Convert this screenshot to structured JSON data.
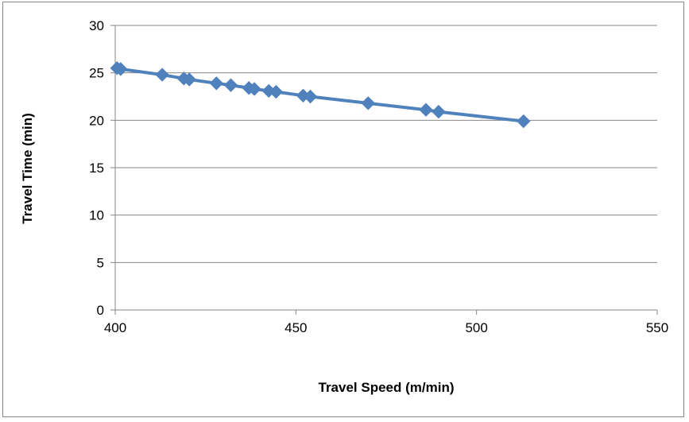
{
  "chart_data": {
    "type": "line",
    "title": "",
    "xlabel": "Travel Speed (m/min)",
    "ylabel": "Travel Time (min)",
    "xlim": [
      400,
      550
    ],
    "ylim": [
      0,
      30
    ],
    "x_ticks": [
      "400",
      "450",
      "500",
      "550"
    ],
    "y_ticks": [
      "0",
      "5",
      "10",
      "15",
      "20",
      "25",
      "30"
    ],
    "grid": "horizontal",
    "legend": "none",
    "marker": "diamond",
    "color": "#4f81bd",
    "series": [
      {
        "points": [
          [
            400.5,
            25.5
          ],
          [
            401.5,
            25.4
          ],
          [
            413,
            24.8
          ],
          [
            419,
            24.4
          ],
          [
            420.5,
            24.3
          ],
          [
            428,
            23.9
          ],
          [
            432,
            23.7
          ],
          [
            437,
            23.4
          ],
          [
            438.5,
            23.3
          ],
          [
            442.5,
            23.1
          ],
          [
            444.5,
            23.0
          ],
          [
            452,
            22.6
          ],
          [
            454,
            22.5
          ],
          [
            470,
            21.8
          ],
          [
            486,
            21.1
          ],
          [
            489.5,
            20.9
          ],
          [
            513,
            19.9
          ]
        ]
      }
    ]
  }
}
